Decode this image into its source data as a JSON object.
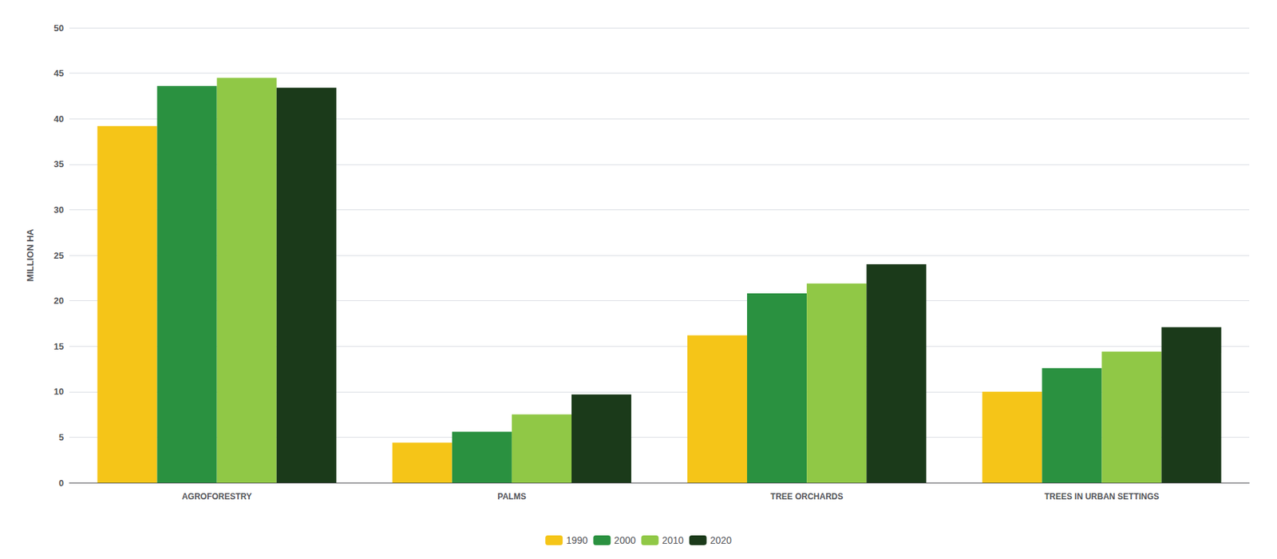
{
  "chart_data": {
    "type": "bar",
    "ylabel": "MILLION HA",
    "categories": [
      "AGROFORESTRY",
      "PALMS",
      "TREE ORCHARDS",
      "TREES IN URBAN SETTINGS"
    ],
    "series": [
      {
        "name": "1990",
        "color": "#F5C518",
        "values": [
          39.2,
          4.4,
          16.2,
          10.0
        ]
      },
      {
        "name": "2000",
        "color": "#2A9140",
        "values": [
          43.6,
          5.6,
          20.8,
          12.6
        ]
      },
      {
        "name": "2010",
        "color": "#90C846",
        "values": [
          44.5,
          7.5,
          21.9,
          14.4
        ]
      },
      {
        "name": "2020",
        "color": "#1B3A1A",
        "values": [
          43.4,
          9.7,
          24.0,
          17.1
        ]
      }
    ],
    "ylim": [
      0,
      50
    ],
    "yticks": [
      0,
      5,
      10,
      15,
      20,
      25,
      30,
      35,
      40,
      45,
      50
    ],
    "grid": true,
    "legend": "bottom"
  }
}
